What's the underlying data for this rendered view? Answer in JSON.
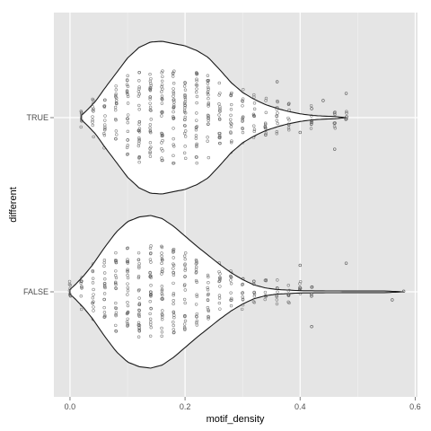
{
  "chart_data": {
    "type": "violin",
    "xlabel": "motif_density",
    "ylabel": "different",
    "xlim": [
      -0.028,
      0.604
    ],
    "x_ticks": [
      0.0,
      0.2,
      0.4,
      0.6
    ],
    "x_tick_labels": [
      "0.0",
      "0.2",
      "0.4",
      "0.6"
    ],
    "categories": [
      "TRUE",
      "FALSE"
    ],
    "grid": true,
    "legend": "none",
    "colors": {
      "panel": "#e5e5e5",
      "grid_major": "#ffffff",
      "grid_minor": "#f2f2f2",
      "violin_fill": "#ffffff",
      "violin_line": "#1a1a1a",
      "points": "#555555"
    },
    "series": [
      {
        "name": "TRUE",
        "range": [
          0.02,
          0.48
        ],
        "density_profile": [
          [
            0.02,
            0.03
          ],
          [
            0.03,
            0.1
          ],
          [
            0.045,
            0.22
          ],
          [
            0.06,
            0.38
          ],
          [
            0.08,
            0.58
          ],
          [
            0.1,
            0.78
          ],
          [
            0.12,
            0.92
          ],
          [
            0.14,
            0.99
          ],
          [
            0.16,
            1.0
          ],
          [
            0.18,
            0.97
          ],
          [
            0.2,
            0.94
          ],
          [
            0.22,
            0.88
          ],
          [
            0.24,
            0.79
          ],
          [
            0.26,
            0.63
          ],
          [
            0.28,
            0.46
          ],
          [
            0.3,
            0.33
          ],
          [
            0.32,
            0.24
          ],
          [
            0.34,
            0.17
          ],
          [
            0.36,
            0.12
          ],
          [
            0.38,
            0.08
          ],
          [
            0.4,
            0.05
          ],
          [
            0.42,
            0.03
          ],
          [
            0.44,
            0.02
          ],
          [
            0.46,
            0.015
          ],
          [
            0.48,
            0.0
          ]
        ],
        "point_columns": [
          0.02,
          0.04,
          0.06,
          0.08,
          0.1,
          0.12,
          0.14,
          0.16,
          0.18,
          0.2,
          0.22,
          0.24,
          0.26,
          0.28,
          0.3,
          0.32,
          0.34,
          0.36,
          0.38,
          0.42,
          0.46,
          0.48
        ],
        "outliers": [
          0.36,
          0.38,
          0.4,
          0.42,
          0.44,
          0.46,
          0.48
        ]
      },
      {
        "name": "FALSE",
        "range": [
          0.0,
          0.58
        ],
        "density_profile": [
          [
            0.0,
            0.03
          ],
          [
            0.01,
            0.1
          ],
          [
            0.025,
            0.22
          ],
          [
            0.04,
            0.36
          ],
          [
            0.06,
            0.58
          ],
          [
            0.08,
            0.78
          ],
          [
            0.1,
            0.92
          ],
          [
            0.12,
            0.98
          ],
          [
            0.14,
            1.0
          ],
          [
            0.16,
            0.96
          ],
          [
            0.18,
            0.86
          ],
          [
            0.2,
            0.73
          ],
          [
            0.22,
            0.6
          ],
          [
            0.24,
            0.48
          ],
          [
            0.26,
            0.36
          ],
          [
            0.28,
            0.25
          ],
          [
            0.3,
            0.16
          ],
          [
            0.32,
            0.09
          ],
          [
            0.34,
            0.05
          ],
          [
            0.36,
            0.03
          ],
          [
            0.4,
            0.015
          ],
          [
            0.45,
            0.012
          ],
          [
            0.5,
            0.01
          ],
          [
            0.55,
            0.01
          ],
          [
            0.58,
            0.0
          ]
        ],
        "point_columns": [
          0.0,
          0.02,
          0.04,
          0.06,
          0.08,
          0.1,
          0.12,
          0.14,
          0.16,
          0.18,
          0.2,
          0.22,
          0.24,
          0.26,
          0.28,
          0.3,
          0.32,
          0.34,
          0.36,
          0.38,
          0.4,
          0.42
        ],
        "outliers": [
          0.4,
          0.42,
          0.48,
          0.56,
          0.58
        ]
      }
    ]
  }
}
